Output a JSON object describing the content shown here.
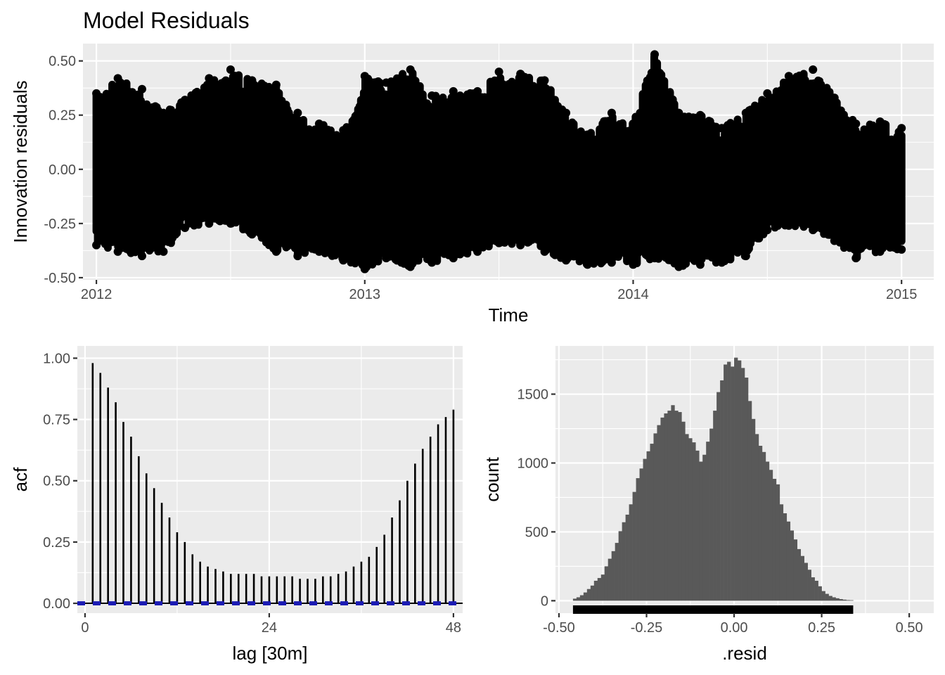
{
  "chart_data": [
    {
      "type": "line",
      "title": "Model Residuals",
      "xlabel": "Time",
      "ylabel": "Innovation residuals",
      "xlim": [
        2011.95,
        2015.12
      ],
      "ylim": [
        -0.51,
        0.58
      ],
      "x_ticks": [
        2012,
        2013,
        2014,
        2015
      ],
      "x_tick_labels": [
        "2012",
        "2013",
        "2014",
        "2015"
      ],
      "y_ticks": [
        -0.5,
        -0.25,
        0,
        0.25,
        0.5
      ],
      "y_tick_labels": [
        "-0.50",
        "-0.25",
        "0.00",
        "0.25",
        "0.50"
      ],
      "grid": true,
      "envelope": {
        "x": [
          2012.0,
          2012.08,
          2012.17,
          2012.25,
          2012.33,
          2012.42,
          2012.5,
          2012.58,
          2012.67,
          2012.75,
          2012.83,
          2012.92,
          2013.0,
          2013.08,
          2013.17,
          2013.25,
          2013.33,
          2013.42,
          2013.5,
          2013.58,
          2013.67,
          2013.75,
          2013.83,
          2013.92,
          2014.0,
          2014.08,
          2014.17,
          2014.25,
          2014.33,
          2014.42,
          2014.5,
          2014.58,
          2014.67,
          2014.75,
          2014.83,
          2014.92,
          2015.0
        ],
        "upper": [
          0.35,
          0.42,
          0.37,
          0.26,
          0.32,
          0.42,
          0.46,
          0.41,
          0.39,
          0.26,
          0.21,
          0.18,
          0.43,
          0.4,
          0.46,
          0.34,
          0.36,
          0.36,
          0.45,
          0.44,
          0.41,
          0.26,
          0.16,
          0.26,
          0.21,
          0.53,
          0.26,
          0.25,
          0.19,
          0.26,
          0.35,
          0.43,
          0.46,
          0.33,
          0.21,
          0.22,
          0.19
        ],
        "lower": [
          -0.35,
          -0.38,
          -0.4,
          -0.38,
          -0.27,
          -0.25,
          -0.25,
          -0.3,
          -0.38,
          -0.4,
          -0.38,
          -0.42,
          -0.46,
          -0.41,
          -0.45,
          -0.43,
          -0.41,
          -0.38,
          -0.34,
          -0.35,
          -0.38,
          -0.42,
          -0.44,
          -0.43,
          -0.44,
          -0.41,
          -0.45,
          -0.44,
          -0.43,
          -0.4,
          -0.28,
          -0.26,
          -0.28,
          -0.33,
          -0.41,
          -0.38,
          -0.37
        ]
      }
    },
    {
      "type": "bar",
      "xlabel": "lag [30m]",
      "ylabel": "acf",
      "xlim": [
        -1,
        49.2
      ],
      "ylim": [
        -0.04,
        1.05
      ],
      "x_ticks": [
        0,
        24,
        48
      ],
      "x_tick_labels": [
        "0",
        "24",
        "48"
      ],
      "y_ticks": [
        0,
        0.25,
        0.5,
        0.75,
        1.0
      ],
      "y_tick_labels": [
        "0.00",
        "0.25",
        "0.50",
        "0.75",
        "1.00"
      ],
      "grid": true,
      "lags": [
        1,
        2,
        3,
        4,
        5,
        6,
        7,
        8,
        9,
        10,
        11,
        12,
        13,
        14,
        15,
        16,
        17,
        18,
        19,
        20,
        21,
        22,
        23,
        24,
        25,
        26,
        27,
        28,
        29,
        30,
        31,
        32,
        33,
        34,
        35,
        36,
        37,
        38,
        39,
        40,
        41,
        42,
        43,
        44,
        45,
        46,
        47,
        48
      ],
      "values": [
        0.98,
        0.94,
        0.88,
        0.82,
        0.74,
        0.68,
        0.6,
        0.53,
        0.47,
        0.41,
        0.35,
        0.29,
        0.25,
        0.2,
        0.17,
        0.15,
        0.14,
        0.13,
        0.12,
        0.12,
        0.12,
        0.12,
        0.11,
        0.11,
        0.11,
        0.11,
        0.11,
        0.1,
        0.1,
        0.1,
        0.11,
        0.11,
        0.12,
        0.13,
        0.15,
        0.17,
        0.19,
        0.23,
        0.28,
        0.35,
        0.42,
        0.5,
        0.57,
        0.63,
        0.68,
        0.73,
        0.76,
        0.79
      ],
      "ci": 0.004
    },
    {
      "type": "bar",
      "subtype": "histogram",
      "xlabel": ".resid",
      "ylabel": "count",
      "xlim": [
        -0.51,
        0.57
      ],
      "ylim": [
        -90,
        1850
      ],
      "x_ticks": [
        -0.5,
        -0.25,
        0,
        0.25,
        0.5
      ],
      "x_tick_labels": [
        "-0.50",
        "-0.25",
        "0.00",
        "0.25",
        "0.50"
      ],
      "y_ticks": [
        0,
        500,
        1000,
        1500
      ],
      "y_tick_labels": [
        "0",
        "500",
        "1000",
        "1500"
      ],
      "grid": true,
      "bin_start": -0.46,
      "bin_width": 0.01,
      "counts": [
        15,
        25,
        40,
        60,
        85,
        110,
        145,
        165,
        190,
        250,
        305,
        360,
        420,
        505,
        570,
        625,
        700,
        790,
        890,
        960,
        1030,
        1085,
        1140,
        1215,
        1275,
        1330,
        1360,
        1380,
        1420,
        1380,
        1370,
        1300,
        1210,
        1180,
        1150,
        1090,
        1010,
        1060,
        1155,
        1250,
        1380,
        1515,
        1600,
        1715,
        1735,
        1700,
        1765,
        1745,
        1690,
        1620,
        1450,
        1320,
        1210,
        1125,
        1080,
        1010,
        950,
        885,
        845,
        700,
        635,
        575,
        510,
        445,
        375,
        325,
        275,
        225,
        170,
        145,
        105,
        70,
        50,
        35,
        25,
        18,
        12,
        8,
        5,
        4
      ],
      "rug": true
    }
  ]
}
